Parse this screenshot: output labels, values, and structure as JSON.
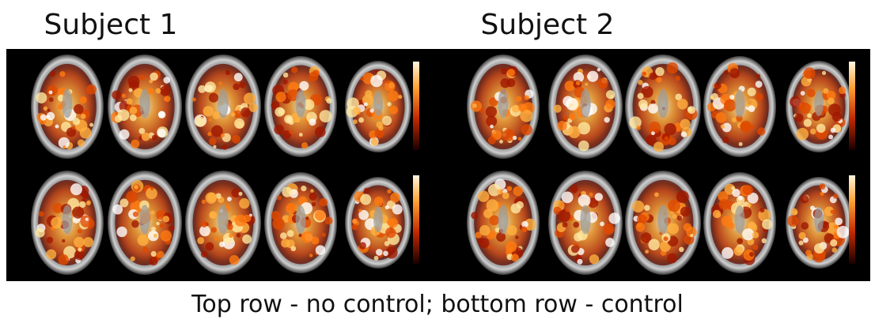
{
  "panels": [
    {
      "title": "Subject 1"
    },
    {
      "title": "Subject 2"
    }
  ],
  "caption": "Top row - no control; bottom row - control"
}
